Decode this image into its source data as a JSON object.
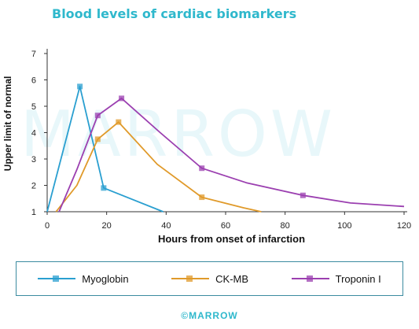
{
  "chart_data": {
    "type": "line",
    "title": "Blood levels of cardiac biomarkers",
    "xlabel": "Hours from onset of infarction",
    "ylabel": "Upper limit of normal",
    "xlim": [
      0,
      120
    ],
    "ylim": [
      1,
      7
    ],
    "xticks": [
      0,
      20,
      40,
      60,
      80,
      100,
      120
    ],
    "yticks": [
      1,
      2,
      3,
      4,
      5,
      6,
      7
    ],
    "grid": false,
    "legend_position": "bottom",
    "series": [
      {
        "name": "Myoglobin",
        "color": "#2a9fd0",
        "points": [
          [
            0,
            1.0
          ],
          [
            11,
            5.75
          ],
          [
            19,
            1.9
          ],
          [
            39,
            1.0
          ]
        ],
        "markers": [
          [
            11,
            5.75
          ],
          [
            19,
            1.9
          ]
        ]
      },
      {
        "name": "CK-MB",
        "color": "#e09a2a",
        "points": [
          [
            3,
            1.0
          ],
          [
            10,
            2.0
          ],
          [
            17,
            3.75
          ],
          [
            24,
            4.4
          ],
          [
            37,
            2.8
          ],
          [
            52,
            1.55
          ],
          [
            66,
            1.15
          ],
          [
            72,
            1.0
          ]
        ],
        "markers": [
          [
            17,
            3.75
          ],
          [
            24,
            4.4
          ],
          [
            52,
            1.55
          ]
        ]
      },
      {
        "name": "Troponin I",
        "color": "#9b3fb0",
        "points": [
          [
            4,
            1.0
          ],
          [
            10,
            2.6
          ],
          [
            17,
            4.65
          ],
          [
            25,
            5.3
          ],
          [
            38,
            4.0
          ],
          [
            52,
            2.65
          ],
          [
            67,
            2.1
          ],
          [
            86,
            1.62
          ],
          [
            102,
            1.33
          ],
          [
            120,
            1.2
          ]
        ],
        "markers": [
          [
            17,
            4.65
          ],
          [
            25,
            5.3
          ],
          [
            52,
            2.65
          ],
          [
            86,
            1.62
          ]
        ]
      }
    ]
  },
  "watermark": "MARROW",
  "footer": "©MARROW"
}
